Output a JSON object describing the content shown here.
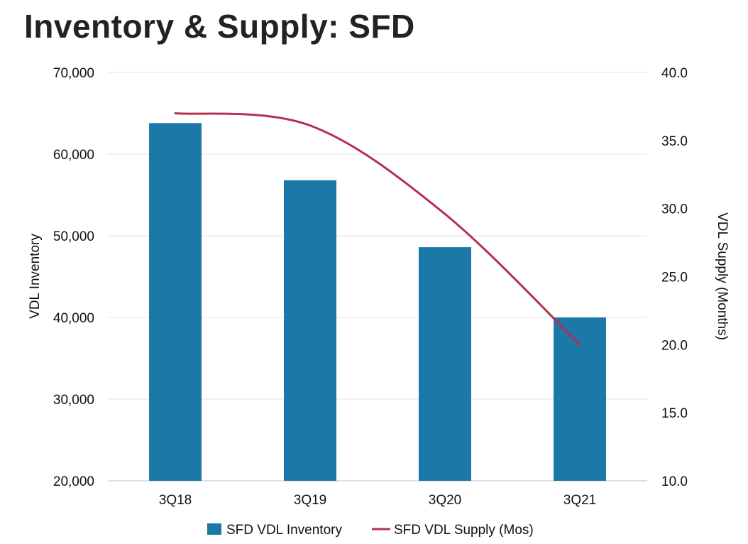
{
  "title": "Inventory & Supply: SFD",
  "chart_data": {
    "type": "bar",
    "categories": [
      "3Q18",
      "3Q19",
      "3Q20",
      "3Q21"
    ],
    "series": [
      {
        "name": "SFD VDL Inventory",
        "type": "bar",
        "axis": "left",
        "values": [
          63800,
          56800,
          48600,
          40000
        ],
        "color": "#1b78a8"
      },
      {
        "name": "SFD VDL Supply (Mos)",
        "type": "line",
        "axis": "right",
        "values": [
          37.0,
          36.1,
          29.6,
          20.0
        ],
        "color": "#b5304f"
      }
    ],
    "y_left": {
      "label": "VDL Inventory",
      "ylim": [
        20000,
        70000
      ],
      "ticks": [
        "20,000",
        "30,000",
        "40,000",
        "50,000",
        "60,000",
        "70,000"
      ]
    },
    "y_right": {
      "label": "VDL Supply (Months)",
      "ylim": [
        10,
        40
      ],
      "ticks": [
        "10.0",
        "15.0",
        "20.0",
        "25.0",
        "30.0",
        "35.0",
        "40.0"
      ]
    },
    "grid": true,
    "legend": "bottom-center"
  }
}
